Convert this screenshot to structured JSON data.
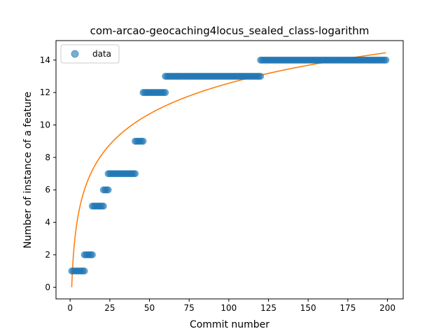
{
  "chart_data": {
    "type": "scatter",
    "title": "com-arcao-geocaching4locus_sealed_class-logarithm",
    "xlabel": "Commit number",
    "ylabel": "Number of instance of a feature",
    "xlim": [
      -8.9,
      209.9
    ],
    "ylim": [
      -0.72,
      15.2
    ],
    "xticks": [
      0,
      25,
      50,
      75,
      100,
      125,
      150,
      175,
      200
    ],
    "yticks": [
      0,
      2,
      4,
      6,
      8,
      10,
      12,
      14
    ],
    "legend": {
      "placement": "top-left",
      "entries": [
        "data"
      ]
    },
    "colors": {
      "data": "#1f77b4",
      "fit": "#ff7f0e"
    },
    "series": [
      {
        "name": "data",
        "kind": "scatter",
        "segments": [
          {
            "x_from": 1,
            "x_to": 9,
            "y": 1
          },
          {
            "x_from": 9,
            "x_to": 14,
            "y": 2
          },
          {
            "x_from": 14,
            "x_to": 21,
            "y": 5
          },
          {
            "x_from": 21,
            "x_to": 24,
            "y": 6
          },
          {
            "x_from": 24,
            "x_to": 41,
            "y": 7
          },
          {
            "x_from": 41,
            "x_to": 46,
            "y": 9
          },
          {
            "x_from": 46,
            "x_to": 60,
            "y": 12
          },
          {
            "x_from": 60,
            "x_to": 120,
            "y": 13
          },
          {
            "x_from": 120,
            "x_to": 199,
            "y": 14
          }
        ]
      },
      {
        "kind": "line",
        "model": "logarithmic",
        "a": 0.0,
        "b": 2.73,
        "x_range": [
          1,
          199
        ]
      }
    ]
  }
}
